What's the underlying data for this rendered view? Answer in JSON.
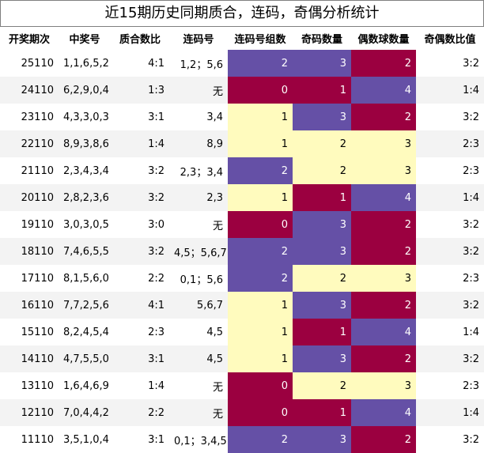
{
  "title": "近15期历史同期质合，连码，奇偶分析统计",
  "headers": [
    "开奖期次",
    "中奖号",
    "质合数比",
    "连码号",
    "连码号组数",
    "奇码数量",
    "偶数球数量",
    "奇偶数比值"
  ],
  "colors": {
    "cream": "#fffbbe",
    "purple": "#6550a6",
    "crimson": "#9b0040"
  },
  "rows": [
    {
      "issue": "25110",
      "draw": "1,1,6,5,2",
      "zh": "4:1",
      "lian": "1,2；5,6",
      "groups": "2",
      "odd": "3",
      "even": "2",
      "oe": "3:2",
      "gc": "purple",
      "oc": "purple",
      "ec": "crimson"
    },
    {
      "issue": "24110",
      "draw": "6,2,9,0,4",
      "zh": "1:3",
      "lian": "无",
      "groups": "0",
      "odd": "1",
      "even": "4",
      "oe": "1:4",
      "gc": "crimson",
      "oc": "crimson",
      "ec": "purple"
    },
    {
      "issue": "23110",
      "draw": "4,3,3,0,3",
      "zh": "3:1",
      "lian": "3,4",
      "groups": "1",
      "odd": "3",
      "even": "2",
      "oe": "3:2",
      "gc": "cream",
      "oc": "purple",
      "ec": "crimson"
    },
    {
      "issue": "22110",
      "draw": "8,9,3,8,6",
      "zh": "1:4",
      "lian": "8,9",
      "groups": "1",
      "odd": "2",
      "even": "3",
      "oe": "2:3",
      "gc": "cream",
      "oc": "cream",
      "ec": "cream"
    },
    {
      "issue": "21110",
      "draw": "2,3,4,3,4",
      "zh": "3:2",
      "lian": "2,3；3,4",
      "groups": "2",
      "odd": "2",
      "even": "3",
      "oe": "2:3",
      "gc": "purple",
      "oc": "cream",
      "ec": "cream"
    },
    {
      "issue": "20110",
      "draw": "2,8,2,3,6",
      "zh": "3:2",
      "lian": "2,3",
      "groups": "1",
      "odd": "1",
      "even": "4",
      "oe": "1:4",
      "gc": "cream",
      "oc": "crimson",
      "ec": "purple"
    },
    {
      "issue": "19110",
      "draw": "3,0,3,0,5",
      "zh": "3:0",
      "lian": "无",
      "groups": "0",
      "odd": "3",
      "even": "2",
      "oe": "3:2",
      "gc": "crimson",
      "oc": "purple",
      "ec": "crimson"
    },
    {
      "issue": "18110",
      "draw": "7,4,6,5,5",
      "zh": "3:2",
      "lian": "4,5；5,6,7",
      "groups": "2",
      "odd": "3",
      "even": "2",
      "oe": "3:2",
      "gc": "purple",
      "oc": "purple",
      "ec": "crimson"
    },
    {
      "issue": "17110",
      "draw": "8,1,5,6,0",
      "zh": "2:2",
      "lian": "0,1；5,6",
      "groups": "2",
      "odd": "2",
      "even": "3",
      "oe": "2:3",
      "gc": "purple",
      "oc": "cream",
      "ec": "cream"
    },
    {
      "issue": "16110",
      "draw": "7,7,2,5,6",
      "zh": "4:1",
      "lian": "5,6,7",
      "groups": "1",
      "odd": "3",
      "even": "2",
      "oe": "3:2",
      "gc": "cream",
      "oc": "purple",
      "ec": "crimson"
    },
    {
      "issue": "15110",
      "draw": "8,2,4,5,4",
      "zh": "2:3",
      "lian": "4,5",
      "groups": "1",
      "odd": "1",
      "even": "4",
      "oe": "1:4",
      "gc": "cream",
      "oc": "crimson",
      "ec": "purple"
    },
    {
      "issue": "14110",
      "draw": "4,7,5,5,0",
      "zh": "3:1",
      "lian": "4,5",
      "groups": "1",
      "odd": "3",
      "even": "2",
      "oe": "3:2",
      "gc": "cream",
      "oc": "purple",
      "ec": "crimson"
    },
    {
      "issue": "13110",
      "draw": "1,6,4,6,9",
      "zh": "1:4",
      "lian": "无",
      "groups": "0",
      "odd": "2",
      "even": "3",
      "oe": "2:3",
      "gc": "crimson",
      "oc": "cream",
      "ec": "cream"
    },
    {
      "issue": "12110",
      "draw": "7,0,4,4,2",
      "zh": "2:2",
      "lian": "无",
      "groups": "0",
      "odd": "1",
      "even": "4",
      "oe": "1:4",
      "gc": "crimson",
      "oc": "crimson",
      "ec": "purple"
    },
    {
      "issue": "11110",
      "draw": "3,5,1,0,4",
      "zh": "3:1",
      "lian": "0,1；3,4,5",
      "groups": "2",
      "odd": "3",
      "even": "2",
      "oe": "3:2",
      "gc": "purple",
      "oc": "purple",
      "ec": "crimson"
    }
  ]
}
